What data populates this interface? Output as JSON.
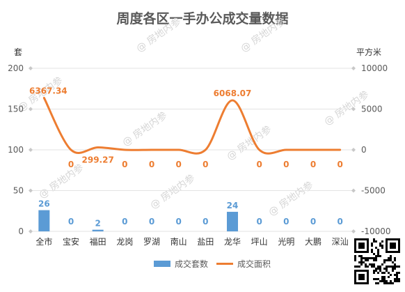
{
  "chart_data": {
    "type": "bar+line",
    "title": "周度各区一手办公成交量数据",
    "categories": [
      "全市",
      "宝安",
      "福田",
      "龙岗",
      "罗湖",
      "南山",
      "盐田",
      "龙华",
      "坪山",
      "光明",
      "大鹏",
      "深汕"
    ],
    "y_left": {
      "unit": "套",
      "ylim": [
        0,
        200
      ],
      "ticks": [
        0,
        50,
        100,
        150,
        200
      ]
    },
    "y_right": {
      "unit": "平方米",
      "ylim": [
        -10000,
        10000
      ],
      "ticks": [
        -10000,
        -5000,
        0,
        5000,
        10000
      ]
    },
    "series": [
      {
        "name": "成交套数",
        "type": "bar",
        "axis": "left",
        "color": "#5B9BD5",
        "values": [
          26,
          0,
          2,
          0,
          0,
          0,
          0,
          24,
          0,
          0,
          0,
          0
        ],
        "labels": [
          "26",
          "0",
          "2",
          "0",
          "0",
          "0",
          "0",
          "24",
          "0",
          "0",
          "0",
          "0"
        ]
      },
      {
        "name": "成交面积",
        "type": "line",
        "axis": "right",
        "color": "#ED7D31",
        "values": [
          6367.34,
          0,
          299.27,
          0,
          0,
          0,
          0,
          6068.07,
          0,
          0,
          0,
          0
        ],
        "labels": [
          "6367.34",
          "0",
          "299.27",
          "0",
          "0",
          "0",
          "0",
          "6068.07",
          "0",
          "0",
          "0",
          "0"
        ]
      }
    ],
    "grid": true,
    "legend": "bottom"
  },
  "watermark": "@ 房地内参"
}
